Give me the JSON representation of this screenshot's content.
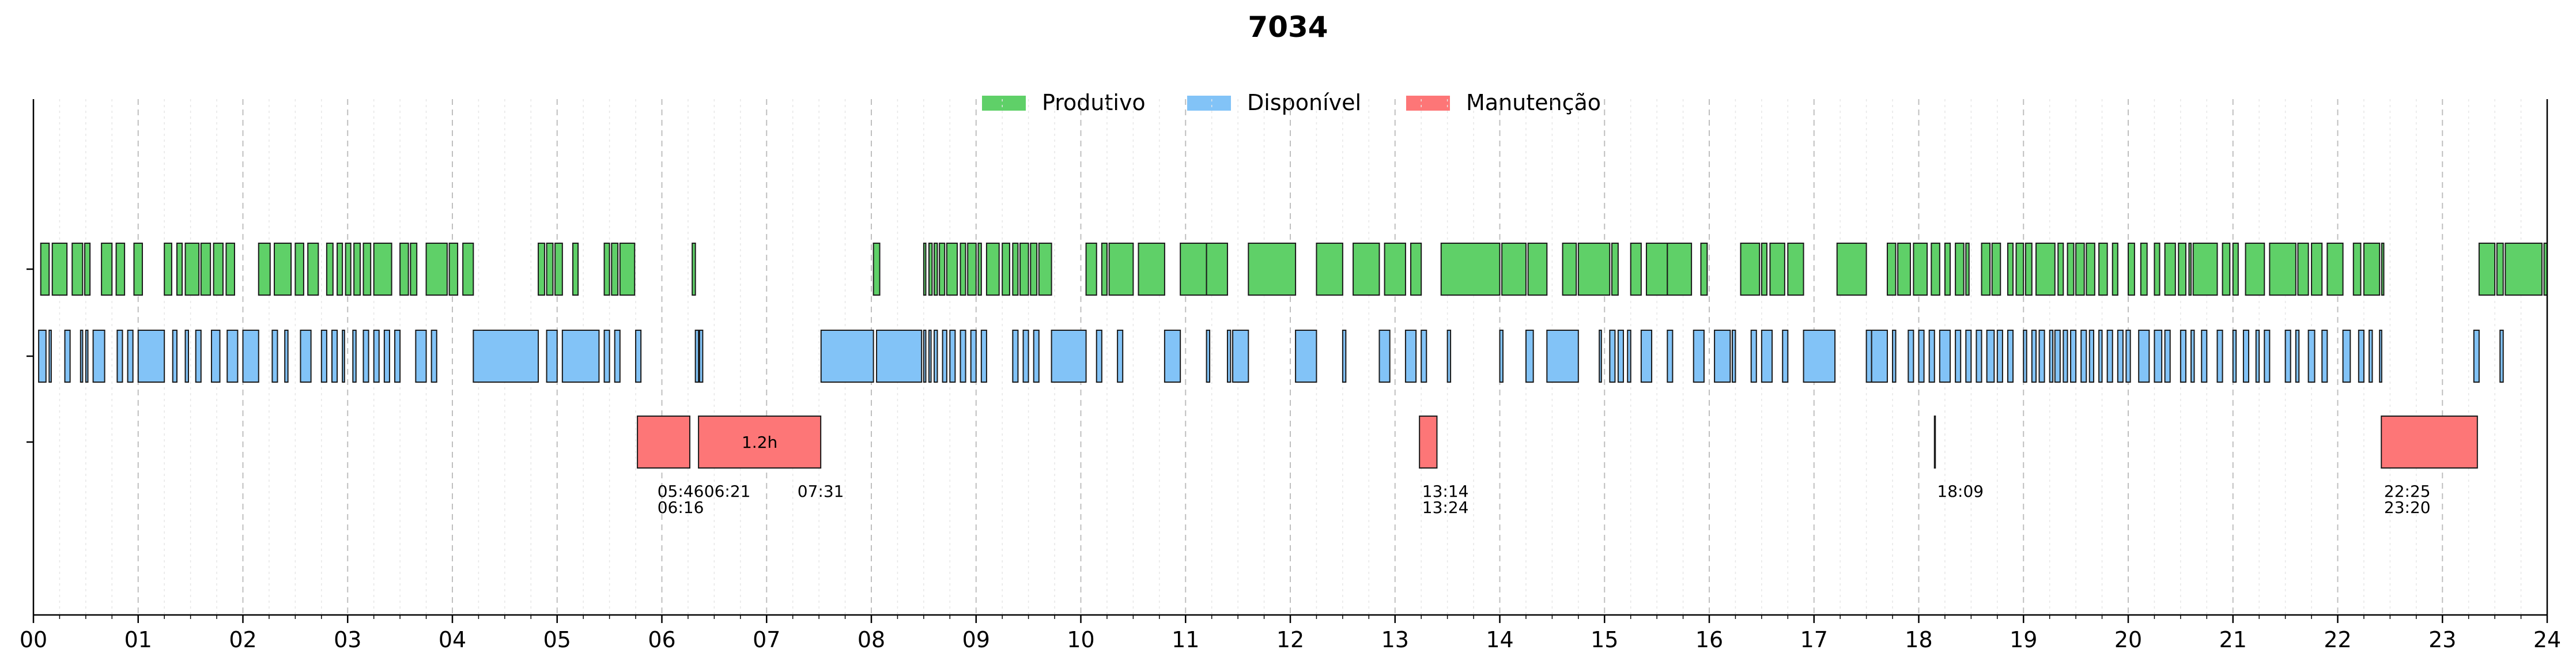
{
  "chart_data": {
    "type": "timeline",
    "title": "7034",
    "xlim": [
      0,
      24
    ],
    "x_tick_labels": [
      "00",
      "01",
      "02",
      "03",
      "04",
      "05",
      "06",
      "07",
      "08",
      "09",
      "10",
      "11",
      "12",
      "13",
      "14",
      "15",
      "16",
      "17",
      "18",
      "19",
      "20",
      "21",
      "22",
      "23",
      "24"
    ],
    "grid": "vertical dashed, hourly major and 15-minute minor",
    "legend_position": "top-center",
    "colors": {
      "Produtivo": "#5fd068",
      "Disponível": "#82c3f7",
      "Manutenção": "#fd7677"
    },
    "series": [
      {
        "name": "Produtivo",
        "intervals": [
          [
            0.07,
            0.15
          ],
          [
            0.18,
            0.32
          ],
          [
            0.37,
            0.47
          ],
          [
            0.49,
            0.54
          ],
          [
            0.65,
            0.75
          ],
          [
            0.79,
            0.87
          ],
          [
            0.96,
            1.04
          ],
          [
            1.25,
            1.32
          ],
          [
            1.37,
            1.42
          ],
          [
            1.45,
            1.58
          ],
          [
            1.6,
            1.69
          ],
          [
            1.72,
            1.81
          ],
          [
            1.84,
            1.92
          ],
          [
            2.15,
            2.26
          ],
          [
            2.3,
            2.46
          ],
          [
            2.5,
            2.58
          ],
          [
            2.62,
            2.72
          ],
          [
            2.8,
            2.86
          ],
          [
            2.9,
            2.95
          ],
          [
            2.98,
            3.03
          ],
          [
            3.06,
            3.12
          ],
          [
            3.15,
            3.22
          ],
          [
            3.25,
            3.42
          ],
          [
            3.5,
            3.58
          ],
          [
            3.6,
            3.66
          ],
          [
            3.75,
            3.95
          ],
          [
            3.97,
            4.05
          ],
          [
            4.1,
            4.2
          ],
          [
            4.82,
            4.88
          ],
          [
            4.9,
            4.96
          ],
          [
            4.98,
            5.05
          ],
          [
            5.15,
            5.2
          ],
          [
            5.45,
            5.5
          ],
          [
            5.52,
            5.58
          ],
          [
            5.6,
            5.74
          ],
          [
            6.29,
            6.32
          ],
          [
            8.02,
            8.08
          ],
          [
            8.5,
            8.52
          ],
          [
            8.55,
            8.58
          ],
          [
            8.6,
            8.63
          ],
          [
            8.65,
            8.7
          ],
          [
            8.72,
            8.82
          ],
          [
            8.85,
            8.9
          ],
          [
            8.92,
            9.0
          ],
          [
            9.02,
            9.05
          ],
          [
            9.1,
            9.22
          ],
          [
            9.25,
            9.32
          ],
          [
            9.35,
            9.4
          ],
          [
            9.42,
            9.5
          ],
          [
            9.52,
            9.58
          ],
          [
            9.6,
            9.72
          ],
          [
            10.05,
            10.15
          ],
          [
            10.2,
            10.25
          ],
          [
            10.27,
            10.5
          ],
          [
            10.55,
            10.8
          ],
          [
            10.95,
            11.2
          ],
          [
            11.2,
            11.4
          ],
          [
            11.6,
            12.05
          ],
          [
            12.25,
            12.5
          ],
          [
            12.6,
            12.85
          ],
          [
            12.9,
            13.1
          ],
          [
            13.15,
            13.25
          ],
          [
            13.44,
            14.0
          ],
          [
            14.02,
            14.25
          ],
          [
            14.27,
            14.45
          ],
          [
            14.6,
            14.73
          ],
          [
            14.75,
            15.05
          ],
          [
            15.07,
            15.13
          ],
          [
            15.25,
            15.35
          ],
          [
            15.4,
            15.6
          ],
          [
            15.6,
            15.83
          ],
          [
            15.92,
            15.98
          ],
          [
            16.3,
            16.48
          ],
          [
            16.5,
            16.55
          ],
          [
            16.58,
            16.72
          ],
          [
            16.75,
            16.9
          ],
          [
            17.22,
            17.5
          ],
          [
            17.7,
            17.78
          ],
          [
            17.8,
            17.92
          ],
          [
            17.95,
            18.08
          ],
          [
            18.12,
            18.2
          ],
          [
            18.25,
            18.3
          ],
          [
            18.35,
            18.43
          ],
          [
            18.45,
            18.48
          ],
          [
            18.6,
            18.68
          ],
          [
            18.7,
            18.78
          ],
          [
            18.85,
            18.9
          ],
          [
            18.93,
            19.0
          ],
          [
            19.02,
            19.08
          ],
          [
            19.12,
            19.3
          ],
          [
            19.33,
            19.38
          ],
          [
            19.42,
            19.48
          ],
          [
            19.5,
            19.58
          ],
          [
            19.6,
            19.68
          ],
          [
            19.72,
            19.8
          ],
          [
            19.85,
            19.9
          ],
          [
            20.0,
            20.06
          ],
          [
            20.12,
            20.18
          ],
          [
            20.25,
            20.3
          ],
          [
            20.35,
            20.45
          ],
          [
            20.48,
            20.55
          ],
          [
            20.58,
            20.6
          ],
          [
            20.62,
            20.85
          ],
          [
            20.9,
            20.97
          ],
          [
            21.0,
            21.05
          ],
          [
            21.12,
            21.3
          ],
          [
            21.35,
            21.6
          ],
          [
            21.62,
            21.72
          ],
          [
            21.75,
            21.85
          ],
          [
            21.9,
            22.05
          ],
          [
            22.15,
            22.22
          ],
          [
            22.25,
            22.4
          ],
          [
            22.42,
            22.44
          ],
          [
            23.35,
            23.5
          ],
          [
            23.52,
            23.58
          ],
          [
            23.6,
            23.95
          ],
          [
            23.97,
            24.0
          ]
        ]
      },
      {
        "name": "Disponível",
        "intervals": [
          [
            0.05,
            0.12
          ],
          [
            0.15,
            0.17
          ],
          [
            0.3,
            0.35
          ],
          [
            0.45,
            0.47
          ],
          [
            0.5,
            0.52
          ],
          [
            0.57,
            0.68
          ],
          [
            0.8,
            0.85
          ],
          [
            0.9,
            0.95
          ],
          [
            1.0,
            1.25
          ],
          [
            1.33,
            1.37
          ],
          [
            1.45,
            1.48
          ],
          [
            1.55,
            1.6
          ],
          [
            1.7,
            1.78
          ],
          [
            1.85,
            1.95
          ],
          [
            2.0,
            2.15
          ],
          [
            2.28,
            2.33
          ],
          [
            2.4,
            2.43
          ],
          [
            2.55,
            2.65
          ],
          [
            2.75,
            2.8
          ],
          [
            2.85,
            2.9
          ],
          [
            2.95,
            2.97
          ],
          [
            3.05,
            3.08
          ],
          [
            3.15,
            3.2
          ],
          [
            3.25,
            3.3
          ],
          [
            3.35,
            3.4
          ],
          [
            3.45,
            3.5
          ],
          [
            3.65,
            3.75
          ],
          [
            3.8,
            3.85
          ],
          [
            4.2,
            4.82
          ],
          [
            4.9,
            5.0
          ],
          [
            5.05,
            5.4
          ],
          [
            5.45,
            5.5
          ],
          [
            5.55,
            5.6
          ],
          [
            5.75,
            5.8
          ],
          [
            6.32,
            6.35
          ],
          [
            6.36,
            6.39
          ],
          [
            7.52,
            8.02
          ],
          [
            8.05,
            8.48
          ],
          [
            8.5,
            8.52
          ],
          [
            8.55,
            8.57
          ],
          [
            8.6,
            8.63
          ],
          [
            8.68,
            8.72
          ],
          [
            8.75,
            8.8
          ],
          [
            8.85,
            8.9
          ],
          [
            8.95,
            9.0
          ],
          [
            9.05,
            9.1
          ],
          [
            9.35,
            9.4
          ],
          [
            9.45,
            9.5
          ],
          [
            9.55,
            9.6
          ],
          [
            9.72,
            10.05
          ],
          [
            10.15,
            10.2
          ],
          [
            10.35,
            10.4
          ],
          [
            10.8,
            10.95
          ],
          [
            11.2,
            11.23
          ],
          [
            11.4,
            11.43
          ],
          [
            11.45,
            11.6
          ],
          [
            12.05,
            12.25
          ],
          [
            12.5,
            12.53
          ],
          [
            12.85,
            12.95
          ],
          [
            13.1,
            13.2
          ],
          [
            13.25,
            13.3
          ],
          [
            13.5,
            13.53
          ],
          [
            14.0,
            14.03
          ],
          [
            14.25,
            14.32
          ],
          [
            14.45,
            14.75
          ],
          [
            14.95,
            14.97
          ],
          [
            15.05,
            15.1
          ],
          [
            15.13,
            15.18
          ],
          [
            15.22,
            15.25
          ],
          [
            15.35,
            15.45
          ],
          [
            15.6,
            15.65
          ],
          [
            15.85,
            15.95
          ],
          [
            16.05,
            16.2
          ],
          [
            16.22,
            16.25
          ],
          [
            16.4,
            16.45
          ],
          [
            16.5,
            16.6
          ],
          [
            16.7,
            16.75
          ],
          [
            16.9,
            17.2
          ],
          [
            17.5,
            17.55
          ],
          [
            17.55,
            17.7
          ],
          [
            17.75,
            17.78
          ],
          [
            17.9,
            17.95
          ],
          [
            18.0,
            18.05
          ],
          [
            18.1,
            18.15
          ],
          [
            18.2,
            18.3
          ],
          [
            18.35,
            18.4
          ],
          [
            18.45,
            18.5
          ],
          [
            18.55,
            18.6
          ],
          [
            18.65,
            18.72
          ],
          [
            18.75,
            18.8
          ],
          [
            18.85,
            18.9
          ],
          [
            19.0,
            19.03
          ],
          [
            19.08,
            19.12
          ],
          [
            19.15,
            19.2
          ],
          [
            19.25,
            19.28
          ],
          [
            19.3,
            19.35
          ],
          [
            19.38,
            19.42
          ],
          [
            19.45,
            19.5
          ],
          [
            19.55,
            19.6
          ],
          [
            19.63,
            19.67
          ],
          [
            19.72,
            19.75
          ],
          [
            19.8,
            19.85
          ],
          [
            19.9,
            19.95
          ],
          [
            19.98,
            20.02
          ],
          [
            20.1,
            20.2
          ],
          [
            20.25,
            20.32
          ],
          [
            20.35,
            20.4
          ],
          [
            20.5,
            20.55
          ],
          [
            20.6,
            20.63
          ],
          [
            20.7,
            20.75
          ],
          [
            20.85,
            20.9
          ],
          [
            21.0,
            21.03
          ],
          [
            21.1,
            21.15
          ],
          [
            21.22,
            21.25
          ],
          [
            21.3,
            21.35
          ],
          [
            21.5,
            21.55
          ],
          [
            21.6,
            21.63
          ],
          [
            21.72,
            21.78
          ],
          [
            21.85,
            21.9
          ],
          [
            22.05,
            22.12
          ],
          [
            22.2,
            22.25
          ],
          [
            22.3,
            22.33
          ],
          [
            22.4,
            22.42
          ],
          [
            23.3,
            23.35
          ],
          [
            23.55,
            23.58
          ]
        ]
      },
      {
        "name": "Manutenção",
        "intervals": [
          [
            5.7667,
            6.2667
          ],
          [
            6.35,
            7.5167
          ],
          [
            13.2333,
            13.4
          ],
          [
            18.15,
            18.1514
          ],
          [
            22.4167,
            23.3333
          ]
        ]
      }
    ],
    "annotations": [
      {
        "x": 5.7667,
        "line1": "05:46",
        "line2": "06:16"
      },
      {
        "x": 6.35,
        "line1": "06:21",
        "line2": ""
      },
      {
        "x": 7.5167,
        "line1": "07:31",
        "line2": ""
      },
      {
        "x": 13.2333,
        "line1": "13:14",
        "line2": "13:24"
      },
      {
        "x": 18.15,
        "line1": "18:09",
        "line2": ""
      },
      {
        "x": 22.4167,
        "line1": "22:25",
        "line2": "23:20"
      }
    ],
    "bar_labels": [
      {
        "interval": [
          6.35,
          7.5167
        ],
        "text": "1.2h"
      }
    ]
  }
}
